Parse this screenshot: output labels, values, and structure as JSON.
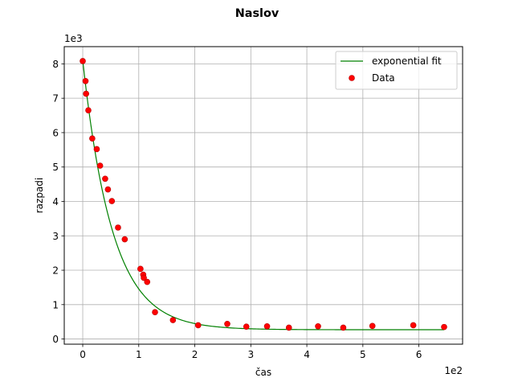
{
  "chart_data": {
    "type": "scatter",
    "title": "Naslov",
    "xlabel": "čas",
    "ylabel": "razpadi",
    "x_multiplier_label": "1e2",
    "y_multiplier_label": "1e3",
    "xlim": [
      -0.33,
      6.78
    ],
    "ylim": [
      -0.15,
      8.5
    ],
    "xticks": [
      0,
      1,
      2,
      3,
      4,
      5,
      6
    ],
    "yticks": [
      0,
      1,
      2,
      3,
      4,
      5,
      6,
      7,
      8
    ],
    "grid": true,
    "legend_position": "top-right",
    "fit": {
      "name": "exponential fit",
      "color": "#008000",
      "a": 7.83,
      "tau": 0.53,
      "c": 0.27,
      "x_range": [
        0,
        6.45
      ]
    },
    "series": [
      {
        "name": "Data",
        "color": "#ff0000",
        "edge_color": "#b30000",
        "x": [
          0.0,
          0.05,
          0.06,
          0.1,
          0.17,
          0.25,
          0.31,
          0.4,
          0.45,
          0.52,
          0.63,
          0.75,
          1.03,
          1.08,
          1.09,
          1.15,
          1.29,
          1.61,
          2.06,
          2.58,
          2.92,
          3.29,
          3.68,
          4.2,
          4.65,
          5.17,
          5.9,
          6.45
        ],
        "y": [
          8.08,
          7.5,
          7.13,
          6.65,
          5.83,
          5.52,
          5.04,
          4.66,
          4.35,
          4.01,
          3.24,
          2.9,
          2.04,
          1.87,
          1.78,
          1.66,
          0.78,
          0.55,
          0.4,
          0.44,
          0.36,
          0.37,
          0.33,
          0.37,
          0.33,
          0.38,
          0.4,
          0.35
        ]
      }
    ]
  }
}
